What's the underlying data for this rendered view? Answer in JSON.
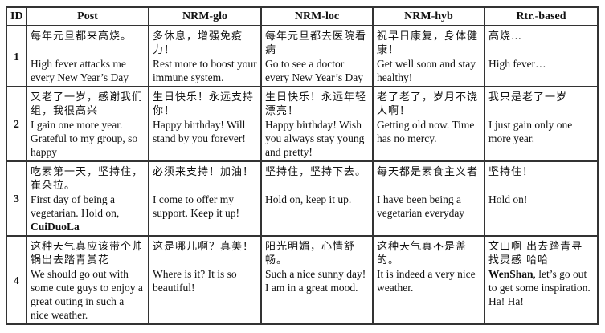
{
  "headers": [
    "ID",
    "Post",
    "NRM-glo",
    "NRM-loc",
    "NRM-hyb",
    "Rtr.-based"
  ],
  "rows": [
    {
      "id": "1",
      "cells": [
        {
          "zh": "每年元旦都来高烧。",
          "en": [
            {
              "t": "High fever attacks me every New Year’s Day"
            }
          ]
        },
        {
          "zh": "多休息，增强免疫力！",
          "en": [
            {
              "t": "Rest more to boost your immune system."
            }
          ]
        },
        {
          "zh": "每年元旦都去医院看病",
          "en": [
            {
              "t": "Go to see a doctor every New Year’s Day"
            }
          ]
        },
        {
          "zh": "祝早日康复，身体健康！",
          "en": [
            {
              "t": "Get well soon and stay healthy!"
            }
          ]
        },
        {
          "zh": "高烧…",
          "en": [
            {
              "t": "High fever…"
            }
          ]
        }
      ]
    },
    {
      "id": "2",
      "cells": [
        {
          "zh": "又老了一岁，感谢我们组，我很高兴",
          "en": [
            {
              "t": "I gain one more year. Grateful to my group, so happy"
            }
          ]
        },
        {
          "zh": "生日快乐！永远支持你！",
          "en": [
            {
              "t": "Happy birthday! Will stand by you forever!"
            }
          ]
        },
        {
          "zh": "生日快乐！永远年轻漂亮！",
          "en": [
            {
              "t": "Happy birthday! Wish you always stay young and pretty!"
            }
          ]
        },
        {
          "zh": "老了老了，岁月不饶人啊！",
          "en": [
            {
              "t": "Getting old now. Time has no mercy."
            }
          ]
        },
        {
          "zh": "我只是老了一岁",
          "en": [
            {
              "t": "I just gain only one more year."
            }
          ]
        }
      ]
    },
    {
      "id": "3",
      "cells": [
        {
          "zh": "吃素第一天，坚持住，崔朵拉。",
          "en": [
            {
              "t": "First day of being a vegetarian.  Hold on, "
            },
            {
              "t": "CuiDuoLa",
              "bold": true
            }
          ]
        },
        {
          "zh": "必须来支持！加油！",
          "en": [
            {
              "t": "I come to offer my support. Keep it up!"
            }
          ]
        },
        {
          "zh": "坚持住，坚持下去。",
          "en": [
            {
              "t": "Hold on, keep it up."
            }
          ]
        },
        {
          "zh": "每天都是素食主义者",
          "en": [
            {
              "t": "I have been being a vegetarian everyday"
            }
          ]
        },
        {
          "zh": "坚持住！",
          "en": [
            {
              "t": "Hold on!"
            }
          ]
        }
      ]
    },
    {
      "id": "4",
      "cells": [
        {
          "zh": "这种天气真应该带个帅锅出去踏青赏花",
          "en": [
            {
              "t": "We should go out with some cute guys to enjoy a great outing in such a nice weather."
            }
          ]
        },
        {
          "zh": "这是哪儿啊？真美！",
          "en": [
            {
              "t": "Where is it? It is so beautiful!"
            }
          ]
        },
        {
          "zh": "阳光明媚，心情舒畅。",
          "en": [
            {
              "t": "Such a nice sunny day! I am in a great mood."
            }
          ]
        },
        {
          "zh": "这种天气真不是盖的。",
          "en": [
            {
              "t": "It is indeed a very nice weather."
            }
          ]
        },
        {
          "zh": "文山啊 出去踏青寻找灵感 哈哈",
          "en": [
            {
              "t": "WenShan",
              "bold": true
            },
            {
              "t": ", let’s go out to get some inspiration. Ha! Ha!"
            }
          ]
        }
      ]
    }
  ]
}
